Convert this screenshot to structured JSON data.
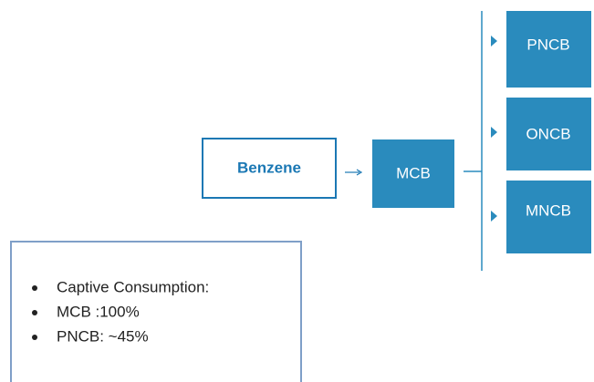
{
  "nodes": [
    {
      "label": "Benzene"
    },
    {
      "label": "MCB"
    },
    {
      "label": "PNCB"
    },
    {
      "label": "ONCB"
    },
    {
      "label": "MNCB"
    }
  ],
  "notes": [
    "Captive Consumption:",
    "MCB :100%",
    "PNCB: ~45%"
  ]
}
